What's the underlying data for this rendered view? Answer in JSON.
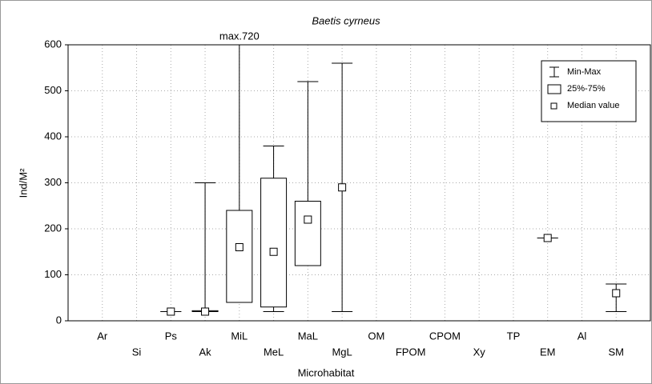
{
  "chart_data": {
    "type": "box",
    "title": "Baetis cyrneus",
    "x_label": "Microhabitat",
    "y_label": "Ind/M²",
    "categories": [
      "Ar",
      "Si",
      "Ps",
      "Ak",
      "MiL",
      "MeL",
      "MaL",
      "MgL",
      "OM",
      "FPOM",
      "CPOM",
      "Xy",
      "TP",
      "EM",
      "Al",
      "SM"
    ],
    "min": [
      null,
      null,
      20,
      20,
      40,
      20,
      120,
      20,
      null,
      null,
      null,
      null,
      null,
      180,
      null,
      20
    ],
    "q1": [
      null,
      null,
      null,
      20,
      40,
      30,
      120,
      null,
      null,
      null,
      null,
      null,
      null,
      null,
      null,
      null
    ],
    "median": [
      null,
      null,
      20,
      20,
      160,
      150,
      220,
      290,
      null,
      null,
      null,
      null,
      null,
      180,
      null,
      60
    ],
    "q3": [
      null,
      null,
      null,
      22,
      240,
      310,
      260,
      null,
      null,
      null,
      null,
      null,
      null,
      null,
      null,
      null
    ],
    "max": [
      null,
      null,
      20,
      300,
      720,
      380,
      520,
      560,
      null,
      null,
      null,
      null,
      null,
      180,
      null,
      80
    ],
    "annotation": "max.720",
    "ylim": [
      0,
      600
    ],
    "yticks": [
      0,
      100,
      200,
      300,
      400,
      500,
      600
    ],
    "grid": true,
    "color": "#000000",
    "legend": [
      "Min-Max",
      "25%-75%",
      "Median value"
    ],
    "legend_position": "upper-right"
  }
}
